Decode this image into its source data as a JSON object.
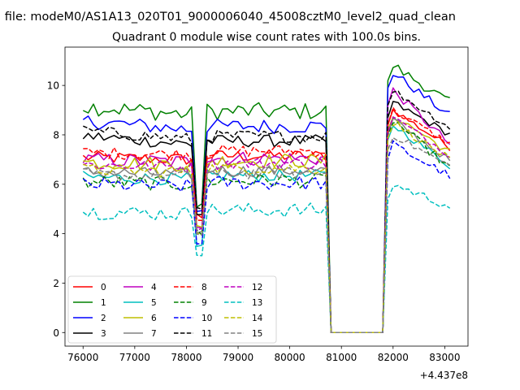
{
  "chart_data": {
    "type": "line",
    "suptitle": "n file: modeM0/AS1A13_020T01_9000006040_45008cztM0_level2_quad_clean",
    "title": "Quadrant 0 module wise count rates with 100.0s bins.",
    "xlabel": "",
    "ylabel": "",
    "x_offset_label": "+4.437e8",
    "xlim": [
      75650,
      83450
    ],
    "ylim": [
      -0.55,
      11.55
    ],
    "xticks": [
      76000,
      77000,
      78000,
      79000,
      80000,
      81000,
      82000,
      83000
    ],
    "xtick_labels": [
      "76000",
      "77000",
      "78000",
      "79000",
      "80000",
      "81000",
      "82000",
      "83000"
    ],
    "yticks": [
      0,
      2,
      4,
      6,
      8,
      10
    ],
    "ytick_labels": [
      "0",
      "2",
      "4",
      "6",
      "8",
      "10"
    ],
    "grid": false,
    "legend_position": "lower-left",
    "legend_columns": 4,
    "x_start": 76000,
    "x_step": 100,
    "series": [
      {
        "name": "0",
        "color": "#ff0000",
        "dash": "solid",
        "level": 7.0,
        "jitter": 0.25,
        "peak": 9.0,
        "dip": 4.7
      },
      {
        "name": "1",
        "color": "#008000",
        "dash": "solid",
        "level": 8.8,
        "jitter": 0.35,
        "peak": 10.8,
        "dip": 5.2
      },
      {
        "name": "2",
        "color": "#0000ff",
        "dash": "solid",
        "level": 8.2,
        "jitter": 0.3,
        "peak": 10.5,
        "dip": 5.0
      },
      {
        "name": "3",
        "color": "#000000",
        "dash": "solid",
        "level": 7.6,
        "jitter": 0.25,
        "peak": 9.3,
        "dip": 4.8
      },
      {
        "name": "4",
        "color": "#bf00bf",
        "dash": "solid",
        "level": 6.9,
        "jitter": 0.3,
        "peak": 9.8,
        "dip": 4.4
      },
      {
        "name": "5",
        "color": "#00bfbf",
        "dash": "solid",
        "level": 6.2,
        "jitter": 0.25,
        "peak": 8.4,
        "dip": 3.4
      },
      {
        "name": "6",
        "color": "#bfbf00",
        "dash": "solid",
        "level": 6.8,
        "jitter": 0.3,
        "peak": 8.8,
        "dip": 4.2
      },
      {
        "name": "7",
        "color": "#808080",
        "dash": "solid",
        "level": 6.4,
        "jitter": 0.25,
        "peak": 8.6,
        "dip": 4.0
      },
      {
        "name": "8",
        "color": "#ff0000",
        "dash": "dashed",
        "level": 7.2,
        "jitter": 0.25,
        "peak": 9.0,
        "dip": 4.6
      },
      {
        "name": "9",
        "color": "#008000",
        "dash": "dashed",
        "level": 6.0,
        "jitter": 0.3,
        "peak": 8.6,
        "dip": 4.0
      },
      {
        "name": "10",
        "color": "#0000ff",
        "dash": "dashed",
        "level": 5.9,
        "jitter": 0.3,
        "peak": 7.6,
        "dip": 3.6
      },
      {
        "name": "11",
        "color": "#000000",
        "dash": "dashed",
        "level": 7.8,
        "jitter": 0.25,
        "peak": 9.8,
        "dip": 5.0
      },
      {
        "name": "12",
        "color": "#bf00bf",
        "dash": "dashed",
        "level": 6.7,
        "jitter": 0.25,
        "peak": 8.7,
        "dip": 4.3
      },
      {
        "name": "13",
        "color": "#00bfbf",
        "dash": "dashed",
        "level": 4.8,
        "jitter": 0.3,
        "peak": 6.0,
        "dip": 3.3
      },
      {
        "name": "14",
        "color": "#bfbf00",
        "dash": "dashed",
        "level": 6.5,
        "jitter": 0.25,
        "peak": 8.5,
        "dip": 4.1
      },
      {
        "name": "15",
        "color": "#808080",
        "dash": "dashed",
        "level": 6.3,
        "jitter": 0.25,
        "peak": 8.0,
        "dip": 4.0
      }
    ]
  }
}
